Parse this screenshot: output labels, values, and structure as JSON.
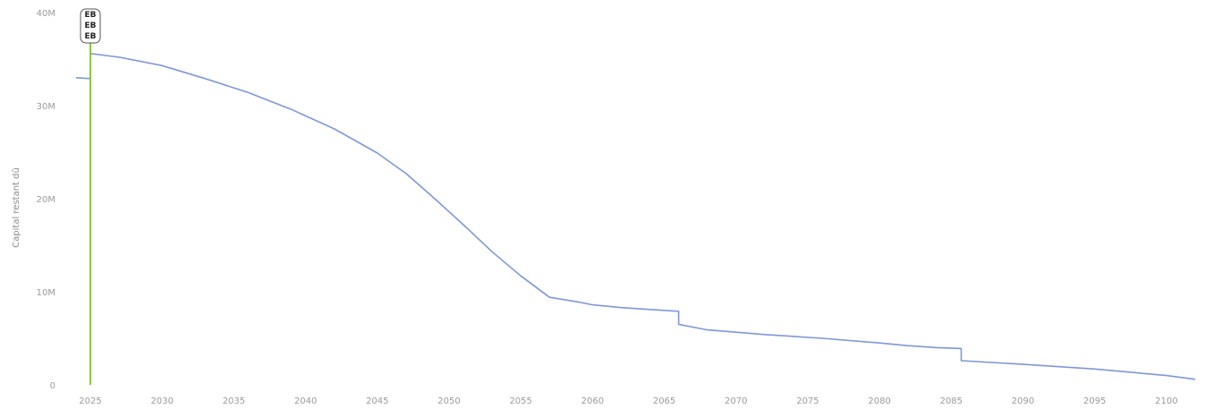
{
  "chart_data": {
    "type": "line",
    "title": "",
    "ylabel": "Capital restant dû",
    "xlabel": "",
    "xlim": [
      2024,
      2103
    ],
    "ylim": [
      0,
      40000000
    ],
    "x_ticks": [
      2025,
      2030,
      2035,
      2040,
      2045,
      2050,
      2055,
      2060,
      2065,
      2070,
      2075,
      2080,
      2085,
      2090,
      2095,
      2100
    ],
    "x_tick_labels": [
      "2025",
      "2030",
      "2035",
      "2040",
      "2045",
      "2050",
      "2055",
      "2060",
      "2065",
      "2070",
      "2075",
      "2080",
      "2085",
      "2090",
      "2095",
      "2100"
    ],
    "y_ticks": [
      0,
      10000000,
      20000000,
      30000000,
      40000000
    ],
    "y_tick_labels": [
      "0",
      "10M",
      "20M",
      "30M",
      "40M"
    ],
    "grid": false,
    "legend": "none",
    "colors": {
      "series": "#7f97d8",
      "marker": "#8cc63f"
    },
    "series": [
      {
        "x": [
          2024.0,
          2025.0,
          2025.0,
          2027,
          2030,
          2033,
          2036,
          2039,
          2042,
          2045,
          2047,
          2049,
          2051,
          2053,
          2055,
          2057,
          2059,
          2060,
          2062,
          2064,
          2066.0,
          2066.0,
          2068,
          2072,
          2076,
          2080,
          2082,
          2084,
          2085.7,
          2085.7,
          2090,
          2095,
          2100,
          2102
        ],
        "y": [
          33000000,
          32900000,
          35600000,
          35200000,
          34300000,
          32900000,
          31400000,
          29600000,
          27500000,
          24900000,
          22700000,
          20000000,
          17200000,
          14300000,
          11700000,
          9400000,
          8900000,
          8600000,
          8300000,
          8100000,
          7900000,
          6500000,
          5900000,
          5400000,
          5000000,
          4500000,
          4200000,
          4000000,
          3900000,
          2600000,
          2200000,
          1700000,
          1000000,
          600000
        ]
      }
    ],
    "vertical_marker": {
      "x": 2025.0,
      "labels": [
        "EB",
        "EB",
        "EB"
      ]
    }
  }
}
